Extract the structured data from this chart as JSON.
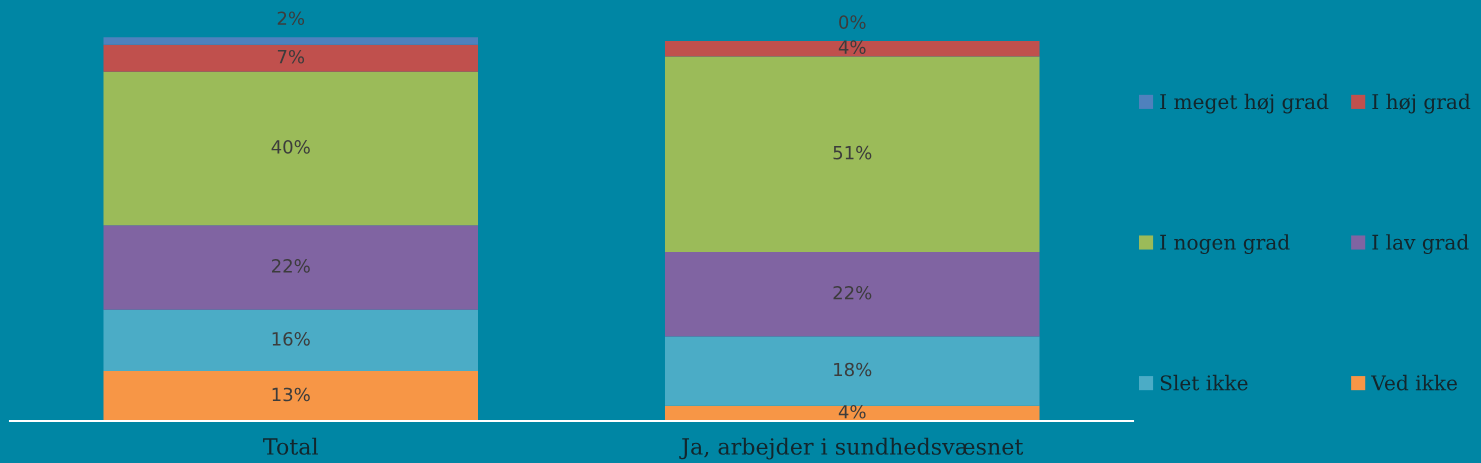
{
  "chart_data": {
    "type": "bar",
    "stacked": true,
    "categories": [
      "Total",
      "Ja, arbejder i sundhedsvæsnet"
    ],
    "series": [
      {
        "name": "Ved ikke",
        "color": "#f79646",
        "values": [
          13,
          4
        ],
        "value_labels": [
          "13%",
          "4%"
        ]
      },
      {
        "name": "Slet ikke",
        "color": "#4bacc6",
        "values": [
          16,
          18
        ],
        "value_labels": [
          "16%",
          "18%"
        ]
      },
      {
        "name": "I lav grad",
        "color": "#8064a2",
        "values": [
          22,
          22
        ],
        "value_labels": [
          "22%",
          "22%"
        ]
      },
      {
        "name": "I nogen grad",
        "color": "#9bbb59",
        "values": [
          40,
          51
        ],
        "value_labels": [
          "40%",
          "51%"
        ]
      },
      {
        "name": "I høj grad",
        "color": "#c0504d",
        "values": [
          7,
          4
        ],
        "value_labels": [
          "7%",
          "4%"
        ]
      },
      {
        "name": "I meget høj grad",
        "color": "#4f81bd",
        "values": [
          2,
          0
        ],
        "value_labels": [
          "2%",
          "0%"
        ]
      }
    ],
    "legend": "right",
    "tick_labels": "x",
    "grid": false
  }
}
